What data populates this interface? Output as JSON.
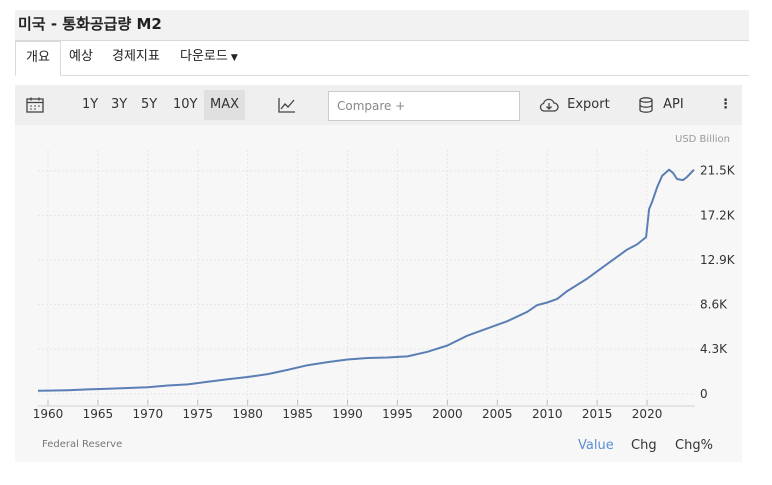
{
  "page_title": "미국 - 통화공급량 M2",
  "tabs": [
    {
      "label": "개요"
    },
    {
      "label": "예상"
    },
    {
      "label": "경제지표"
    },
    {
      "label": "다운로드"
    }
  ],
  "toolbar": {
    "ranges": [
      "1Y",
      "3Y",
      "5Y",
      "10Y",
      "MAX"
    ],
    "selected_range": "MAX",
    "compare_placeholder": "Compare +",
    "export_label": "Export",
    "api_label": "API"
  },
  "footer": {
    "source": "Federal Reserve",
    "modes": [
      "Value",
      "Chg",
      "Chg%"
    ],
    "active_mode": "Value"
  },
  "colors": {
    "line": "#5b7fb5",
    "active_mode": "#5b8fd4"
  },
  "chart_data": {
    "type": "line",
    "unit_label": "USD Billion",
    "xlim": [
      1959,
      2024.8
    ],
    "ylim": [
      -600,
      23500
    ],
    "x_ticks": [
      1960,
      1965,
      1970,
      1975,
      1980,
      1985,
      1990,
      1995,
      2000,
      2005,
      2010,
      2015,
      2020
    ],
    "y_ticks": [
      0,
      4300,
      8600,
      12900,
      17200,
      21500
    ],
    "y_tick_labels": [
      "0",
      "4.3K",
      "8.6K",
      "12.9K",
      "17.2K",
      "21.5K"
    ],
    "grid": true,
    "series": [
      {
        "name": "M2",
        "x": [
          1959,
          1960,
          1962,
          1964,
          1966,
          1968,
          1970,
          1972,
          1974,
          1976,
          1978,
          1980,
          1982,
          1984,
          1986,
          1988,
          1990,
          1992,
          1994,
          1996,
          1998,
          2000,
          2002,
          2004,
          2006,
          2008,
          2009,
          2010,
          2011,
          2012,
          2014,
          2016,
          2018,
          2019,
          2019.9,
          2020.2,
          2020.5,
          2021,
          2021.5,
          2022.2,
          2022.6,
          2023,
          2023.6,
          2024,
          2024.7
        ],
        "values": [
          290,
          305,
          340,
          420,
          480,
          560,
          630,
          800,
          900,
          1150,
          1400,
          1620,
          1900,
          2300,
          2750,
          3050,
          3300,
          3450,
          3500,
          3600,
          4050,
          4650,
          5600,
          6300,
          7000,
          7900,
          8550,
          8800,
          9150,
          9900,
          11100,
          12500,
          13900,
          14400,
          15100,
          17800,
          18500,
          19900,
          21000,
          21600,
          21300,
          20700,
          20600,
          20900,
          21600
        ]
      }
    ]
  }
}
